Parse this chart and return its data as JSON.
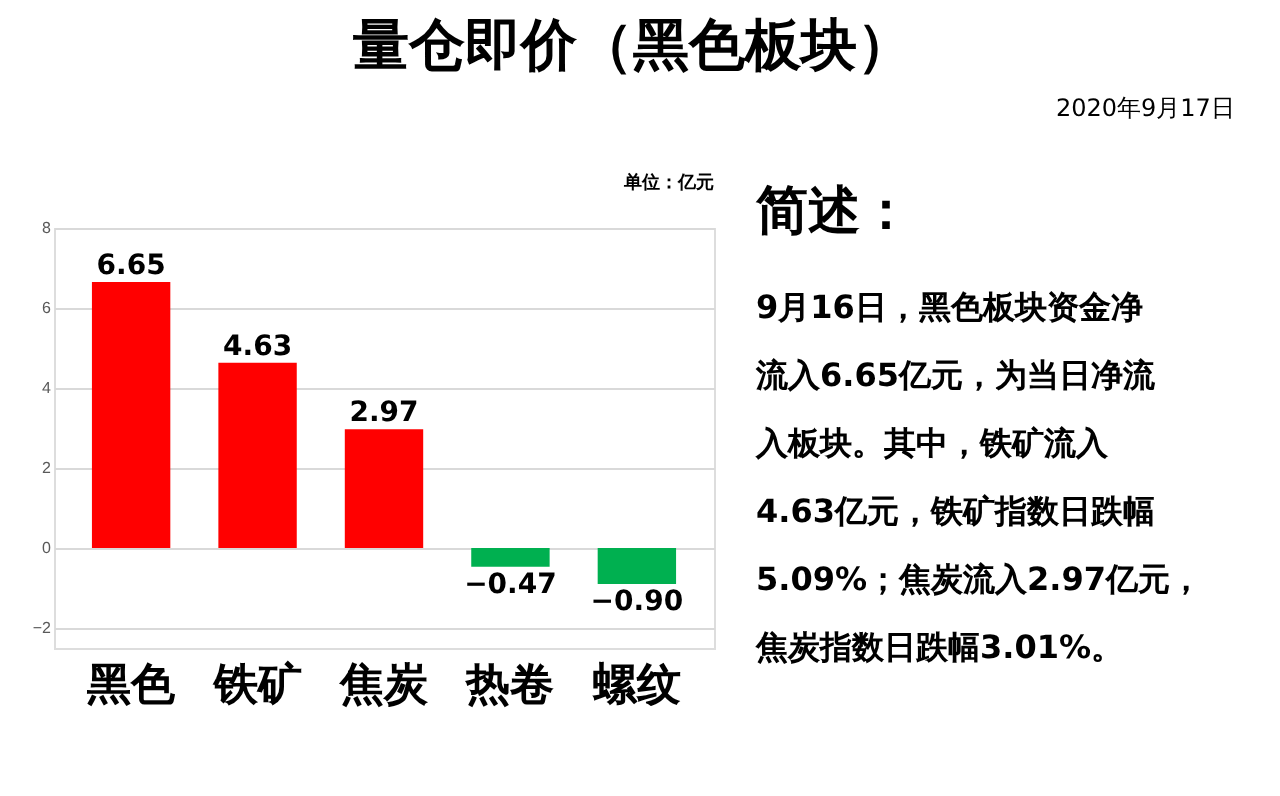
{
  "chart_data": {
    "type": "bar",
    "title": "量仓即价（黑色板块）",
    "categories": [
      "黑色",
      "铁矿",
      "焦炭",
      "热卷",
      "螺纹"
    ],
    "values": [
      6.65,
      4.63,
      2.97,
      -0.47,
      -0.9
    ],
    "colors": [
      "#ff0000",
      "#ff0000",
      "#ff0000",
      "#00b050",
      "#00b050"
    ],
    "value_labels": [
      "6.65",
      "4.63",
      "2.97",
      "−0.47",
      "−0.90"
    ],
    "ylim": [
      -2.5,
      8
    ],
    "yticks": [
      -2,
      0,
      2,
      4,
      6,
      8
    ],
    "grid": "y",
    "annotations": [
      "2020年9月17日",
      "单位：亿元",
      "简述：",
      "9月16日，黑色板块资金净流入6.65亿元，为当日净流入板块。其中，铁矿流入4.63亿元，铁矿指数日跌幅5.09%；焦炭流入2.97亿元，焦炭指数日跌幅3.01%。"
    ]
  }
}
